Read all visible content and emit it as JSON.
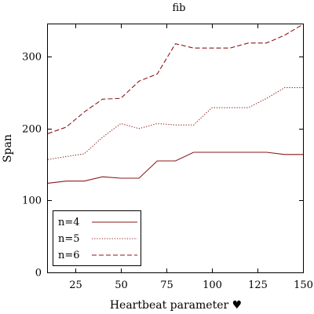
{
  "chart_data": {
    "type": "line",
    "title": "fib",
    "xlabel": "Heartbeat parameter ♥",
    "ylabel": "Span",
    "xlim": [
      10,
      150
    ],
    "ylim": [
      0,
      345
    ],
    "xticks": [
      25,
      50,
      75,
      100,
      125,
      150
    ],
    "yticks": [
      0,
      100,
      200,
      300
    ],
    "grid": false,
    "legend_position": "bottom-left",
    "line_color": "#8b1a1a",
    "x": [
      10,
      20,
      30,
      40,
      50,
      60,
      70,
      80,
      90,
      100,
      110,
      120,
      130,
      140,
      150
    ],
    "series": [
      {
        "name": "n=4",
        "style": "solid",
        "values": [
          124,
          127,
          127,
          133,
          131,
          131,
          155,
          155,
          167,
          167,
          167,
          167,
          167,
          164,
          164
        ]
      },
      {
        "name": "n=5",
        "style": "dotted",
        "values": [
          157,
          161,
          165,
          188,
          207,
          200,
          207,
          205,
          205,
          229,
          229,
          229,
          242,
          257,
          257
        ]
      },
      {
        "name": "n=6",
        "style": "dashed",
        "values": [
          193,
          202,
          223,
          241,
          242,
          266,
          276,
          318,
          312,
          312,
          312,
          319,
          319,
          330,
          345
        ]
      }
    ]
  }
}
